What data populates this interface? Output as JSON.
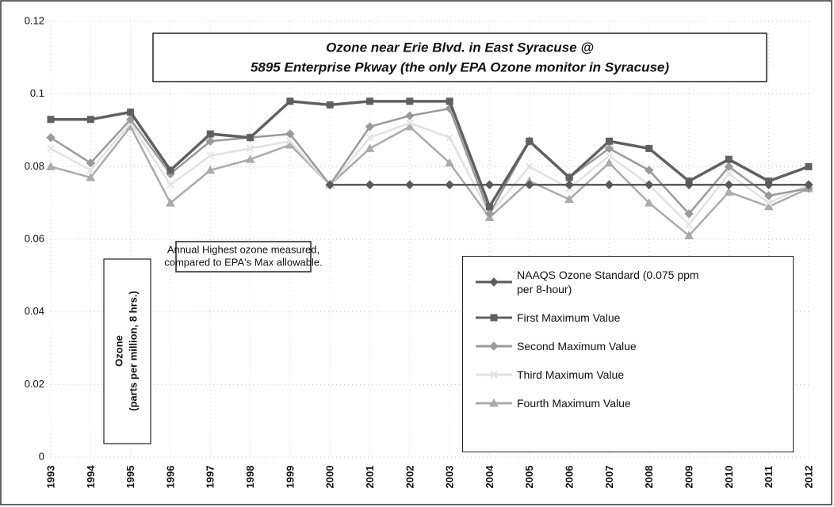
{
  "chart_data": {
    "type": "line",
    "title": [
      "Ozone near Erie Blvd. in East Syracuse @",
      "5895 Enterprise Pkway (the only EPA Ozone monitor in Syracuse)"
    ],
    "annotation": [
      "Annual Highest ozone measured,",
      "compared to EPA's Max allowable."
    ],
    "y_label": [
      "Ozone",
      "(parts per million, 8 hrs.)"
    ],
    "categories": [
      "1993",
      "1994",
      "1995",
      "1996",
      "1997",
      "1998",
      "1999",
      "2000",
      "2001",
      "2002",
      "2003",
      "2004",
      "2005",
      "2006",
      "2007",
      "2008",
      "2009",
      "2010",
      "2011",
      "2012"
    ],
    "series": [
      {
        "name": "NAAQS Ozone Standard (0.075 ppm per 8-hour)",
        "color": "#5a5a5a",
        "marker": "diamond",
        "values": [
          null,
          null,
          null,
          null,
          null,
          null,
          null,
          0.075,
          0.075,
          0.075,
          0.075,
          0.075,
          0.075,
          0.075,
          0.075,
          0.075,
          0.075,
          0.075,
          0.075,
          0.075
        ]
      },
      {
        "name": "First Maximum Value",
        "color": "#606060",
        "marker": "square",
        "values": [
          0.093,
          0.093,
          0.095,
          0.079,
          0.089,
          0.088,
          0.098,
          0.097,
          0.098,
          0.098,
          0.098,
          0.069,
          0.087,
          0.077,
          0.087,
          0.085,
          0.076,
          0.082,
          0.076,
          0.08
        ]
      },
      {
        "name": "Second Maximum Value",
        "color": "#9a9a9a",
        "marker": "diamond",
        "values": [
          0.088,
          0.081,
          0.093,
          0.078,
          0.087,
          0.088,
          0.089,
          0.075,
          0.091,
          0.094,
          0.096,
          0.067,
          0.087,
          0.077,
          0.085,
          0.079,
          0.067,
          0.08,
          0.072,
          0.074
        ]
      },
      {
        "name": "Third Maximum Value",
        "color": "#e2e2e2",
        "marker": "cross",
        "values": [
          0.085,
          0.079,
          0.092,
          0.075,
          0.083,
          0.085,
          0.087,
          0.075,
          0.088,
          0.092,
          0.088,
          0.067,
          0.08,
          0.074,
          0.083,
          0.075,
          0.064,
          0.078,
          0.07,
          0.075
        ]
      },
      {
        "name": "Fourth Maximum Value",
        "color": "#ababab",
        "marker": "triangle",
        "values": [
          0.08,
          0.077,
          0.091,
          0.07,
          0.079,
          0.082,
          0.086,
          0.075,
          0.085,
          0.091,
          0.081,
          0.066,
          0.076,
          0.071,
          0.081,
          0.07,
          0.061,
          0.073,
          0.069,
          0.074
        ]
      }
    ],
    "ylim": [
      0,
      0.12
    ],
    "yticks": [
      0,
      0.02,
      0.04,
      0.06,
      0.08,
      0.1,
      0.12
    ],
    "grid": true
  }
}
